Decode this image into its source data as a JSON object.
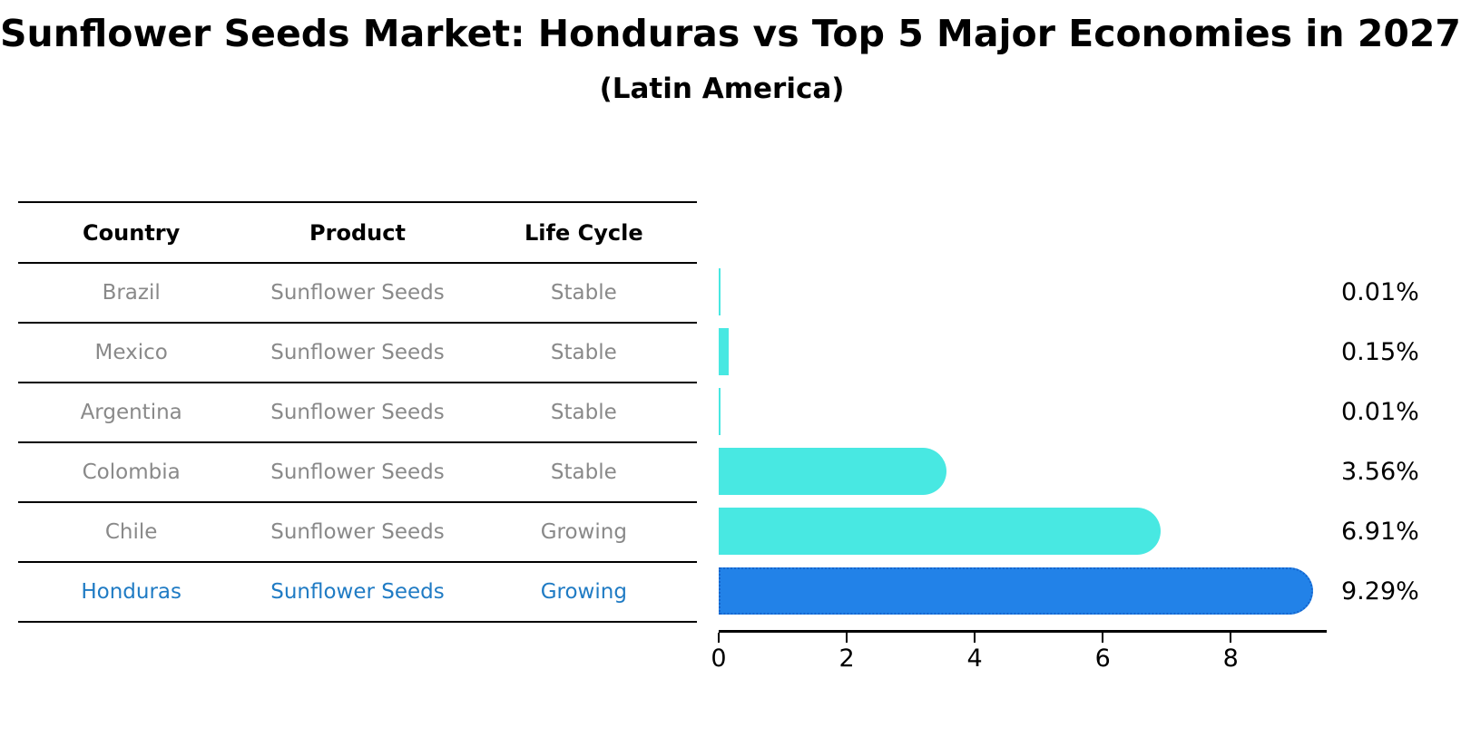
{
  "title": "Sunflower Seeds Market: Honduras vs Top 5 Major Economies in 2027",
  "subtitle": "(Latin America)",
  "table": {
    "headers": [
      "Country",
      "Product",
      "Life Cycle"
    ],
    "rows": [
      {
        "country": "Brazil",
        "product": "Sunflower Seeds",
        "life_cycle": "Stable",
        "highlight": false
      },
      {
        "country": "Mexico",
        "product": "Sunflower Seeds",
        "life_cycle": "Stable",
        "highlight": false
      },
      {
        "country": "Argentina",
        "product": "Sunflower Seeds",
        "life_cycle": "Stable",
        "highlight": false
      },
      {
        "country": "Colombia",
        "product": "Sunflower Seeds",
        "life_cycle": "Stable",
        "highlight": false
      },
      {
        "country": "Chile",
        "product": "Sunflower Seeds",
        "life_cycle": "Growing",
        "highlight": false
      },
      {
        "country": "Honduras",
        "product": "Sunflower Seeds",
        "life_cycle": "Growing",
        "highlight": true
      }
    ]
  },
  "chart_data": {
    "type": "bar",
    "orientation": "horizontal",
    "title": "Sunflower Seeds Market: Honduras vs Top 5 Major Economies in 2027",
    "subtitle": "(Latin America)",
    "categories": [
      "Brazil",
      "Mexico",
      "Argentina",
      "Colombia",
      "Chile",
      "Honduras"
    ],
    "values": [
      0.01,
      0.15,
      0.01,
      3.56,
      6.91,
      9.29
    ],
    "value_labels": [
      "0.01%",
      "0.15%",
      "0.01%",
      "3.56%",
      "6.91%",
      "9.29%"
    ],
    "unit": "percent",
    "highlight_index": 5,
    "xlim": [
      0,
      9.5
    ],
    "x_ticks": [
      0,
      2,
      4,
      6,
      8
    ],
    "grid": false,
    "legend": false,
    "bar_color": "#48E8E2",
    "highlight_bar_color": "#2282E8",
    "highlight_border_color": "#1565CD",
    "highlight_text_color": "#1f7bc4",
    "table_text_color": "#898989"
  }
}
